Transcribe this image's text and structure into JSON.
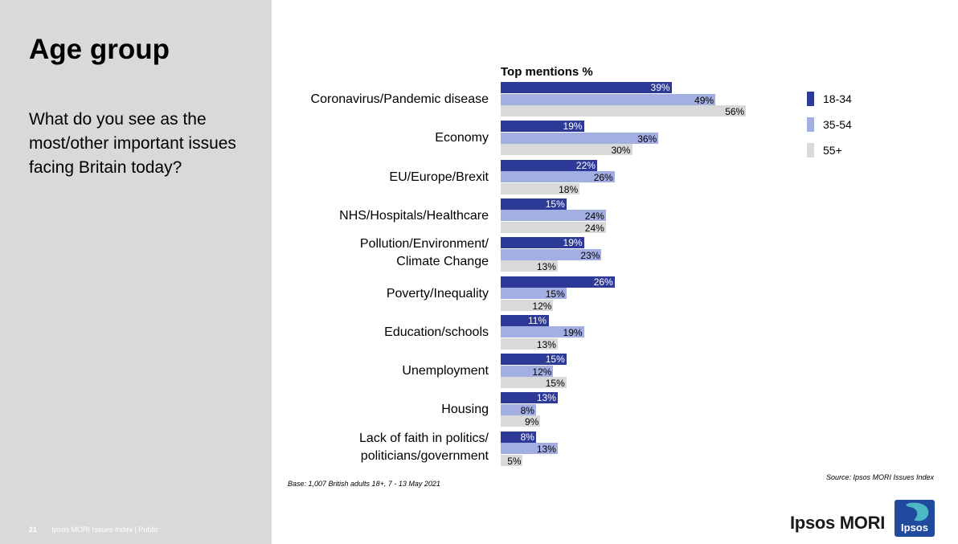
{
  "slide": {
    "title": "Age group",
    "question": "What do you see as the most/other important issues facing Britain today?",
    "page_number": "21",
    "footer_text": "Ipsos MORI Issues Index | Public"
  },
  "notes": {
    "base": "Base: 1,007 British adults 18+, 7 - 13 May 2021",
    "source": "Source: Ipsos MORI Issues Index"
  },
  "brand": {
    "name": "Ipsos MORI",
    "logo_text": "Ipsos"
  },
  "colors": {
    "series_18_34": "#2e3a97",
    "series_35_54": "#a3aee3",
    "series_55_plus": "#d9d9d9",
    "left_panel": "#d9d9d9",
    "logo_bg": "#1f4a9e",
    "logo_accent": "#4cb8c4"
  },
  "chart_data": {
    "type": "bar",
    "orientation": "horizontal",
    "title": "Top mentions %",
    "categories": [
      "Coronavirus/Pandemic disease",
      "Economy",
      "EU/Europe/Brexit",
      "NHS/Hospitals/Healthcare",
      "Pollution/Environment/ Climate Change",
      "Poverty/Inequality",
      "Education/schools",
      "Unemployment",
      "Housing",
      "Lack of faith in politics/ politicians/government"
    ],
    "series": [
      {
        "name": "18-34",
        "values": [
          39,
          19,
          22,
          15,
          19,
          26,
          11,
          15,
          13,
          8
        ]
      },
      {
        "name": "35-54",
        "values": [
          49,
          36,
          26,
          24,
          23,
          15,
          19,
          12,
          8,
          13
        ]
      },
      {
        "name": "55+",
        "values": [
          56,
          30,
          18,
          24,
          13,
          12,
          13,
          15,
          9,
          5
        ]
      }
    ],
    "value_suffix": "%",
    "legend_position": "right",
    "grid": false
  }
}
